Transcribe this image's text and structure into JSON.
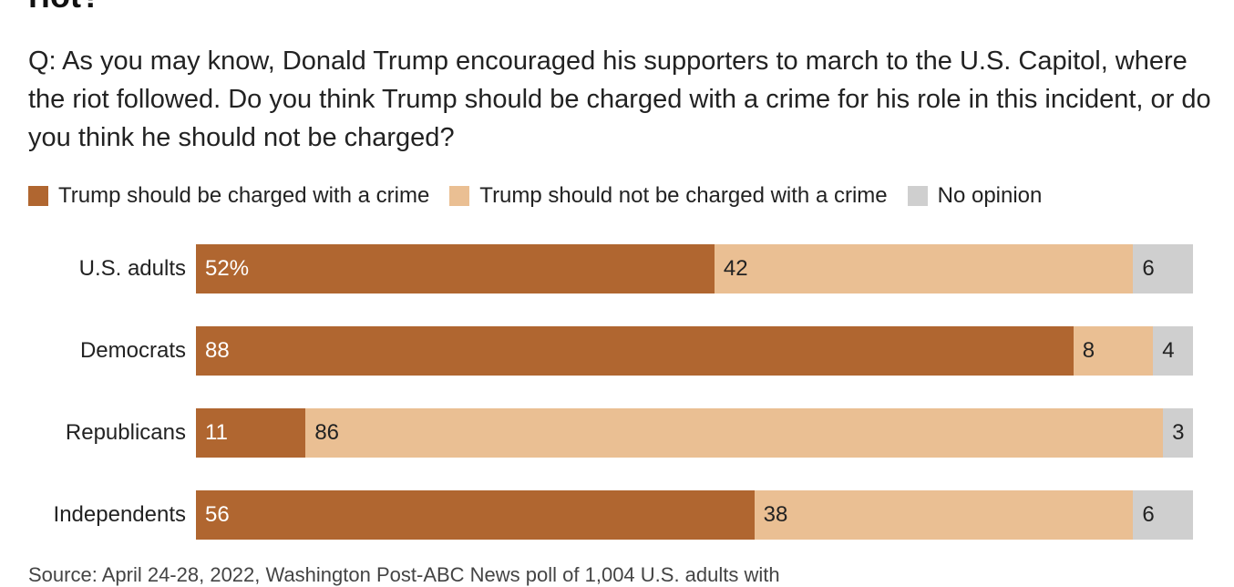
{
  "title_partial": "riot?",
  "question": "Q: As you may know, Donald Trump encouraged his supporters to march to the U.S. Capitol, where the riot followed. Do you think Trump should be charged with a crime for his role in this incident, or do you think he should not be charged?",
  "source_partial": "Source: April 24-28, 2022, Washington Post-ABC News poll of 1,004 U.S. adults with",
  "colors": {
    "charged": "#b06630",
    "not_charged": "#eabf93",
    "no_opinion": "#cfcfcf",
    "label_dark_text": "#222222",
    "label_light_text": "#ffffff"
  },
  "chart_data": {
    "type": "bar",
    "orientation": "horizontal",
    "stacked": true,
    "value_format": "percent",
    "legend_position": "top-left",
    "categories": [
      "U.S. adults",
      "Democrats",
      "Republicans",
      "Independents"
    ],
    "series": [
      {
        "name": "Trump should be charged with a crime",
        "values": [
          52,
          88,
          11,
          56
        ]
      },
      {
        "name": "Trump should not be charged with a crime",
        "values": [
          42,
          8,
          86,
          38
        ]
      },
      {
        "name": "No opinion",
        "values": [
          6,
          4,
          3,
          6
        ]
      }
    ],
    "data_labels": [
      [
        "52%",
        "42",
        "6"
      ],
      [
        "88",
        "8",
        "4"
      ],
      [
        "11",
        "86",
        "3"
      ],
      [
        "56",
        "38",
        "6"
      ]
    ],
    "xlim": [
      0,
      100
    ]
  }
}
